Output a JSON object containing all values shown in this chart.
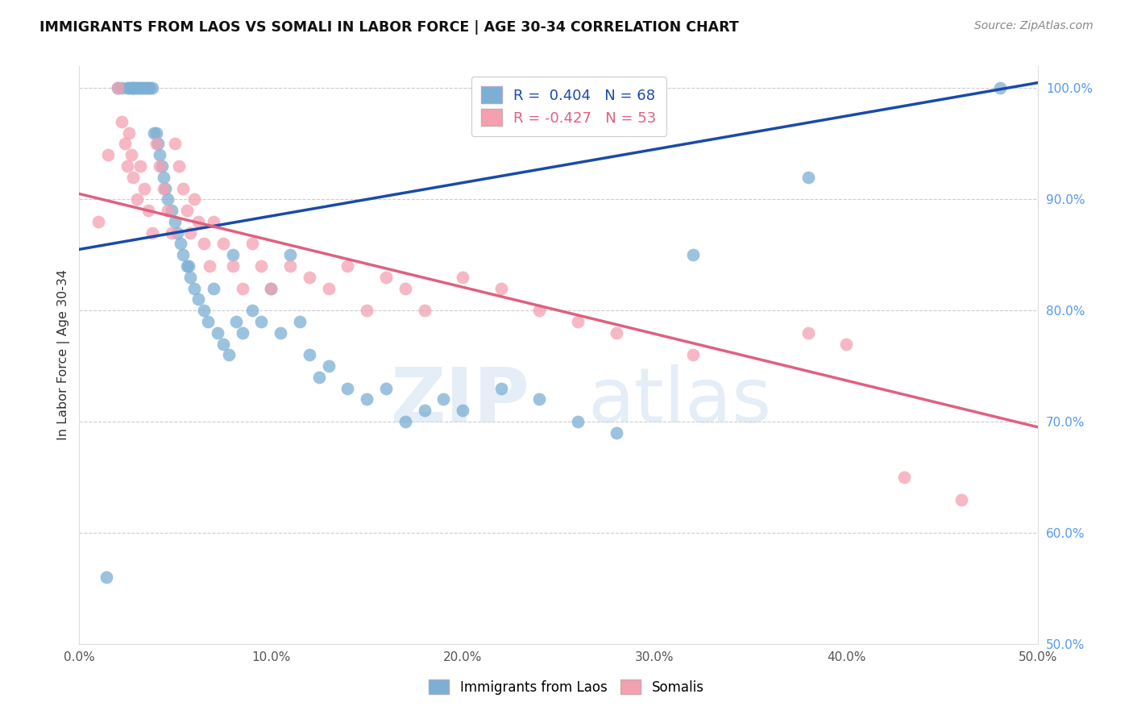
{
  "title": "IMMIGRANTS FROM LAOS VS SOMALI IN LABOR FORCE | AGE 30-34 CORRELATION CHART",
  "source": "Source: ZipAtlas.com",
  "ylabel": "In Labor Force | Age 30-34",
  "xlim": [
    0.0,
    0.5
  ],
  "ylim": [
    0.5,
    1.02
  ],
  "xticks": [
    0.0,
    0.1,
    0.2,
    0.3,
    0.4,
    0.5
  ],
  "xticklabels": [
    "0.0%",
    "10.0%",
    "20.0%",
    "30.0%",
    "40.0%",
    "50.0%"
  ],
  "yticks_right": [
    0.5,
    0.6,
    0.7,
    0.8,
    0.9,
    1.0
  ],
  "yticklabels_right": [
    "50.0%",
    "60.0%",
    "70.0%",
    "80.0%",
    "90.0%",
    "100.0%"
  ],
  "legend_r_blue": "R =  0.404",
  "legend_n_blue": "N = 68",
  "legend_r_pink": "R = -0.427",
  "legend_n_pink": "N = 53",
  "blue_color": "#7bafd4",
  "pink_color": "#f4a0b0",
  "blue_line_color": "#1a4aaa",
  "pink_line_color": "#e06080",
  "watermark_zip": "ZIP",
  "watermark_atlas": "atlas",
  "blue_line_x0": 0.0,
  "blue_line_y0": 0.855,
  "blue_line_x1": 0.5,
  "blue_line_y1": 1.005,
  "pink_line_x0": 0.0,
  "pink_line_y0": 0.905,
  "pink_line_x1": 0.5,
  "pink_line_y1": 0.695,
  "blue_x": [
    0.014,
    0.02,
    0.022,
    0.025,
    0.026,
    0.027,
    0.028,
    0.028,
    0.029,
    0.03,
    0.031,
    0.032,
    0.033,
    0.034,
    0.035,
    0.036,
    0.037,
    0.038,
    0.039,
    0.04,
    0.041,
    0.042,
    0.043,
    0.044,
    0.045,
    0.046,
    0.048,
    0.05,
    0.051,
    0.053,
    0.054,
    0.056,
    0.057,
    0.058,
    0.06,
    0.062,
    0.065,
    0.067,
    0.07,
    0.072,
    0.075,
    0.078,
    0.08,
    0.082,
    0.085,
    0.09,
    0.095,
    0.1,
    0.105,
    0.11,
    0.115,
    0.12,
    0.125,
    0.13,
    0.14,
    0.15,
    0.16,
    0.17,
    0.18,
    0.19,
    0.2,
    0.22,
    0.24,
    0.26,
    0.28,
    0.32,
    0.38,
    0.48
  ],
  "blue_y": [
    0.56,
    1.0,
    1.0,
    1.0,
    1.0,
    1.0,
    1.0,
    1.0,
    1.0,
    1.0,
    1.0,
    1.0,
    1.0,
    1.0,
    1.0,
    1.0,
    1.0,
    1.0,
    0.96,
    0.96,
    0.95,
    0.94,
    0.93,
    0.92,
    0.91,
    0.9,
    0.89,
    0.88,
    0.87,
    0.86,
    0.85,
    0.84,
    0.84,
    0.83,
    0.82,
    0.81,
    0.8,
    0.79,
    0.82,
    0.78,
    0.77,
    0.76,
    0.85,
    0.79,
    0.78,
    0.8,
    0.79,
    0.82,
    0.78,
    0.85,
    0.79,
    0.76,
    0.74,
    0.75,
    0.73,
    0.72,
    0.73,
    0.7,
    0.71,
    0.72,
    0.71,
    0.73,
    0.72,
    0.7,
    0.69,
    0.85,
    0.92,
    1.0
  ],
  "pink_x": [
    0.01,
    0.015,
    0.02,
    0.022,
    0.024,
    0.025,
    0.026,
    0.027,
    0.028,
    0.03,
    0.032,
    0.034,
    0.036,
    0.038,
    0.04,
    0.042,
    0.044,
    0.046,
    0.048,
    0.05,
    0.052,
    0.054,
    0.056,
    0.058,
    0.06,
    0.062,
    0.065,
    0.068,
    0.07,
    0.075,
    0.08,
    0.085,
    0.09,
    0.095,
    0.1,
    0.11,
    0.12,
    0.13,
    0.14,
    0.15,
    0.16,
    0.17,
    0.18,
    0.2,
    0.22,
    0.24,
    0.26,
    0.28,
    0.32,
    0.38,
    0.4,
    0.43,
    0.46
  ],
  "pink_y": [
    0.88,
    0.94,
    1.0,
    0.97,
    0.95,
    0.93,
    0.96,
    0.94,
    0.92,
    0.9,
    0.93,
    0.91,
    0.89,
    0.87,
    0.95,
    0.93,
    0.91,
    0.89,
    0.87,
    0.95,
    0.93,
    0.91,
    0.89,
    0.87,
    0.9,
    0.88,
    0.86,
    0.84,
    0.88,
    0.86,
    0.84,
    0.82,
    0.86,
    0.84,
    0.82,
    0.84,
    0.83,
    0.82,
    0.84,
    0.8,
    0.83,
    0.82,
    0.8,
    0.83,
    0.82,
    0.8,
    0.79,
    0.78,
    0.76,
    0.78,
    0.77,
    0.65,
    0.63
  ]
}
